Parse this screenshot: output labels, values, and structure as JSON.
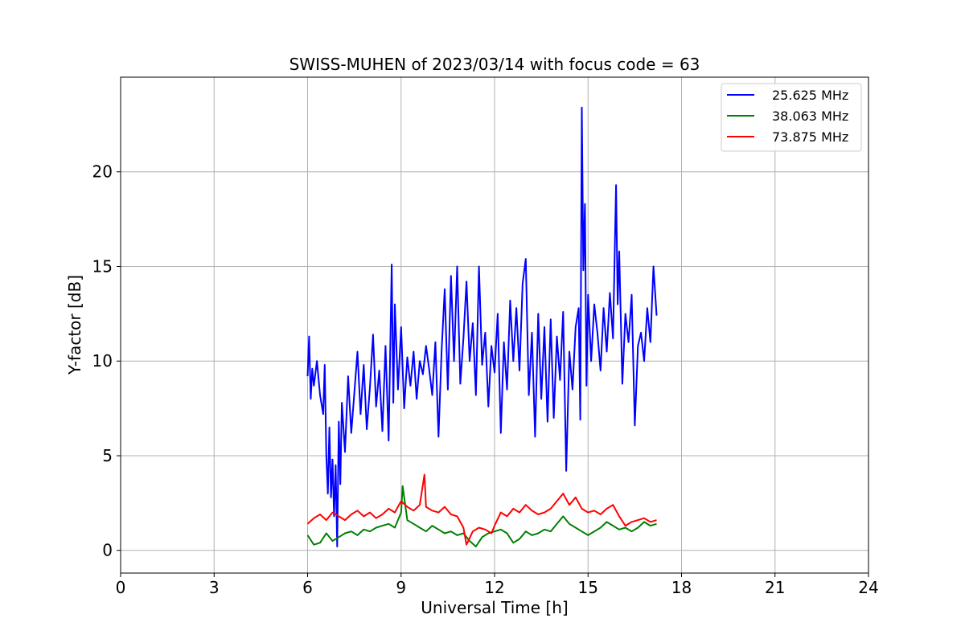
{
  "chart_data": {
    "type": "line",
    "title": "SWISS-MUHEN of 2023/03/14 with focus code = 63",
    "xlabel": "Universal Time [h]",
    "ylabel": "Y-factor [dB]",
    "xlim": [
      0,
      24
    ],
    "ylim": [
      -1.2,
      25
    ],
    "xticks": [
      0,
      3,
      6,
      9,
      12,
      15,
      18,
      21,
      24
    ],
    "yticks": [
      0,
      5,
      10,
      15,
      20
    ],
    "grid": true,
    "legend_position": "top-right",
    "series": [
      {
        "name": "25.625 MHz",
        "color": "#0000ff",
        "x": [
          6.0,
          6.05,
          6.1,
          6.15,
          6.2,
          6.3,
          6.4,
          6.5,
          6.55,
          6.6,
          6.65,
          6.7,
          6.75,
          6.8,
          6.85,
          6.9,
          6.95,
          7.0,
          7.05,
          7.1,
          7.2,
          7.3,
          7.4,
          7.5,
          7.6,
          7.7,
          7.8,
          7.9,
          8.0,
          8.1,
          8.2,
          8.3,
          8.4,
          8.5,
          8.6,
          8.7,
          8.75,
          8.8,
          8.9,
          9.0,
          9.1,
          9.2,
          9.3,
          9.4,
          9.5,
          9.6,
          9.7,
          9.8,
          9.9,
          10.0,
          10.1,
          10.2,
          10.3,
          10.4,
          10.5,
          10.6,
          10.7,
          10.8,
          10.9,
          11.0,
          11.1,
          11.2,
          11.3,
          11.4,
          11.5,
          11.6,
          11.7,
          11.8,
          11.9,
          12.0,
          12.1,
          12.2,
          12.3,
          12.4,
          12.5,
          12.6,
          12.7,
          12.8,
          12.9,
          13.0,
          13.1,
          13.2,
          13.3,
          13.4,
          13.5,
          13.6,
          13.7,
          13.8,
          13.9,
          14.0,
          14.1,
          14.2,
          14.3,
          14.4,
          14.5,
          14.6,
          14.7,
          14.75,
          14.8,
          14.85,
          14.9,
          14.95,
          15.0,
          15.1,
          15.2,
          15.3,
          15.4,
          15.5,
          15.6,
          15.7,
          15.8,
          15.9,
          15.95,
          16.0,
          16.1,
          16.2,
          16.3,
          16.4,
          16.5,
          16.6,
          16.7,
          16.8,
          16.9,
          17.0,
          17.1,
          17.2
        ],
        "values": [
          9.2,
          11.3,
          8.0,
          9.6,
          8.7,
          10.0,
          8.2,
          7.2,
          9.8,
          5.0,
          3.0,
          6.5,
          2.8,
          4.8,
          1.8,
          4.5,
          0.2,
          6.8,
          3.5,
          7.8,
          5.2,
          9.2,
          6.2,
          8.3,
          10.5,
          7.2,
          9.8,
          6.4,
          8.6,
          11.4,
          7.6,
          9.5,
          6.3,
          10.8,
          5.8,
          15.1,
          7.8,
          13.0,
          8.5,
          11.8,
          7.5,
          10.2,
          8.7,
          10.5,
          8.0,
          10.0,
          9.3,
          10.8,
          9.6,
          8.2,
          11.0,
          6.0,
          10.5,
          13.8,
          8.5,
          14.5,
          10.0,
          15.0,
          8.8,
          11.2,
          14.2,
          10.0,
          12.0,
          8.2,
          15.0,
          9.8,
          11.5,
          7.6,
          10.8,
          9.4,
          12.5,
          6.2,
          11.0,
          8.5,
          13.2,
          10.0,
          12.8,
          9.5,
          14.1,
          15.4,
          8.2,
          11.5,
          6.0,
          12.5,
          8.0,
          11.8,
          6.8,
          12.2,
          7.0,
          11.3,
          9.0,
          12.6,
          4.2,
          10.5,
          8.5,
          11.8,
          12.8,
          6.9,
          23.4,
          14.8,
          18.3,
          8.7,
          13.5,
          10.0,
          13.0,
          11.5,
          9.5,
          12.8,
          10.5,
          13.6,
          11.2,
          19.3,
          13.0,
          15.8,
          8.8,
          12.5,
          11.0,
          13.5,
          6.6,
          10.8,
          11.5,
          10.0,
          12.8,
          11.0,
          15.0,
          12.4
        ]
      },
      {
        "name": "38.063 MHz",
        "color": "#008000",
        "x": [
          6.0,
          6.2,
          6.4,
          6.6,
          6.8,
          7.0,
          7.2,
          7.4,
          7.6,
          7.8,
          8.0,
          8.2,
          8.4,
          8.6,
          8.8,
          9.0,
          9.05,
          9.2,
          9.4,
          9.6,
          9.8,
          10.0,
          10.2,
          10.4,
          10.6,
          10.8,
          11.0,
          11.2,
          11.4,
          11.6,
          11.8,
          12.0,
          12.2,
          12.4,
          12.6,
          12.8,
          13.0,
          13.2,
          13.4,
          13.6,
          13.8,
          14.0,
          14.2,
          14.4,
          14.6,
          14.8,
          15.0,
          15.2,
          15.4,
          15.6,
          15.8,
          16.0,
          16.2,
          16.4,
          16.6,
          16.8,
          17.0,
          17.2
        ],
        "values": [
          0.8,
          0.3,
          0.4,
          0.9,
          0.5,
          0.7,
          0.9,
          1.0,
          0.8,
          1.1,
          1.0,
          1.2,
          1.3,
          1.4,
          1.2,
          2.0,
          3.4,
          1.6,
          1.4,
          1.2,
          1.0,
          1.3,
          1.1,
          0.9,
          1.0,
          0.8,
          0.9,
          0.5,
          0.2,
          0.7,
          0.9,
          1.0,
          1.1,
          0.9,
          0.4,
          0.6,
          1.0,
          0.8,
          0.9,
          1.1,
          1.0,
          1.4,
          1.8,
          1.4,
          1.2,
          1.0,
          0.8,
          1.0,
          1.2,
          1.5,
          1.3,
          1.1,
          1.2,
          1.0,
          1.2,
          1.5,
          1.3,
          1.4
        ]
      },
      {
        "name": "73.875 MHz",
        "color": "#ff0000",
        "x": [
          6.0,
          6.2,
          6.4,
          6.6,
          6.8,
          7.0,
          7.2,
          7.4,
          7.6,
          7.8,
          8.0,
          8.2,
          8.4,
          8.6,
          8.8,
          9.0,
          9.2,
          9.4,
          9.6,
          9.75,
          9.8,
          10.0,
          10.2,
          10.4,
          10.6,
          10.8,
          11.0,
          11.1,
          11.3,
          11.5,
          11.7,
          11.9,
          12.0,
          12.2,
          12.4,
          12.6,
          12.8,
          13.0,
          13.2,
          13.4,
          13.6,
          13.8,
          14.0,
          14.2,
          14.4,
          14.6,
          14.8,
          15.0,
          15.2,
          15.4,
          15.6,
          15.8,
          16.0,
          16.2,
          16.4,
          16.6,
          16.8,
          17.0,
          17.2
        ],
        "values": [
          1.4,
          1.7,
          1.9,
          1.6,
          2.0,
          1.8,
          1.6,
          1.9,
          2.1,
          1.8,
          2.0,
          1.7,
          1.9,
          2.2,
          2.0,
          2.6,
          2.3,
          2.1,
          2.4,
          4.0,
          2.3,
          2.1,
          2.0,
          2.3,
          1.9,
          1.8,
          1.2,
          0.3,
          1.0,
          1.2,
          1.1,
          0.9,
          1.3,
          2.0,
          1.8,
          2.2,
          2.0,
          2.4,
          2.1,
          1.9,
          2.0,
          2.2,
          2.6,
          3.0,
          2.4,
          2.8,
          2.2,
          2.0,
          2.1,
          1.9,
          2.2,
          2.4,
          1.8,
          1.3,
          1.5,
          1.6,
          1.7,
          1.5,
          1.6
        ]
      }
    ]
  }
}
